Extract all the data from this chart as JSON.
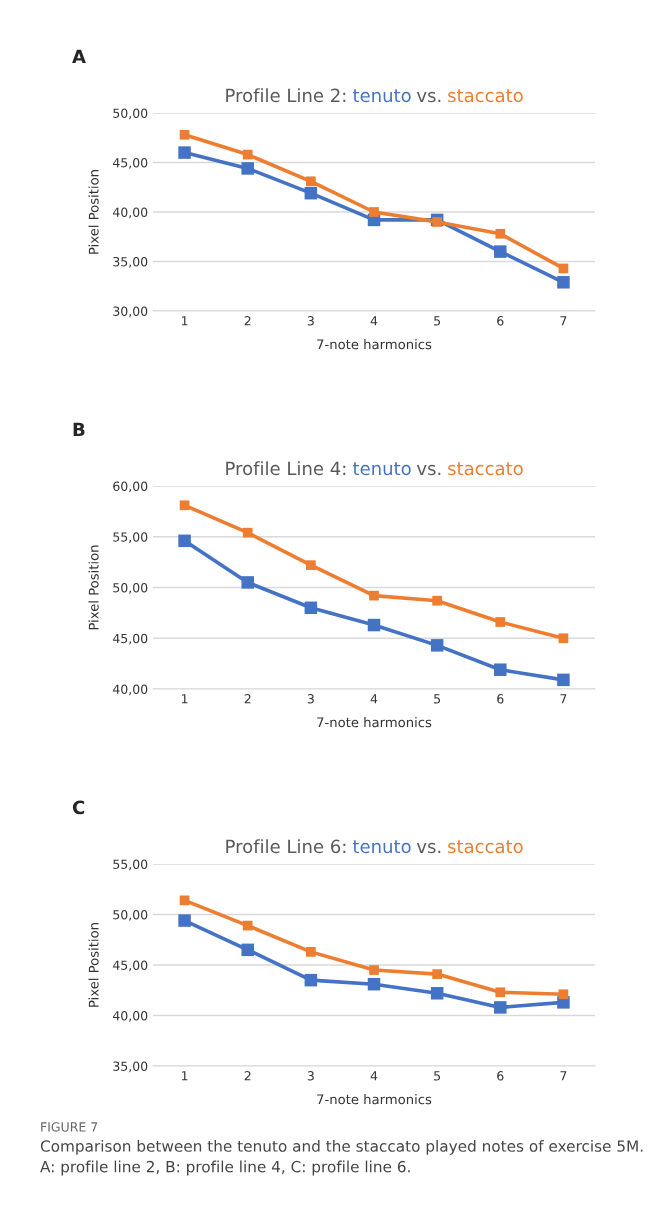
{
  "chart_data": [
    {
      "type": "line",
      "title": "Profile Line 2:",
      "xlabel": "7-note harmonics",
      "ylabel": "Pixel Position",
      "categories": [
        "1",
        "2",
        "3",
        "4",
        "5",
        "6",
        "7"
      ],
      "ylim": [
        30,
        50
      ],
      "yticks": [
        {
          "value": 30,
          "label": "30,00"
        },
        {
          "value": 35,
          "label": "35,00"
        },
        {
          "value": 40,
          "label": "40,00"
        },
        {
          "value": 45,
          "label": "45,00"
        },
        {
          "value": 50,
          "label": "50,00"
        }
      ],
      "grid": "y",
      "marker": "square",
      "line_style": "solid",
      "legend": false,
      "annotations": [
        "A",
        "vs."
      ],
      "series": [
        {
          "name": "tenuto",
          "color": "#4472c4",
          "values": [
            46.0,
            44.4,
            41.9,
            39.2,
            39.2,
            36.0,
            32.9
          ]
        },
        {
          "name": "staccato",
          "color": "#ed7d31",
          "values": [
            47.8,
            45.8,
            43.1,
            40.0,
            39.0,
            37.8,
            34.3
          ]
        }
      ]
    },
    {
      "type": "line",
      "title": "Profile Line 4:",
      "xlabel": "7-note harmonics",
      "ylabel": "Pixel Position",
      "categories": [
        "1",
        "2",
        "3",
        "4",
        "5",
        "6",
        "7"
      ],
      "ylim": [
        40,
        60
      ],
      "yticks": [
        {
          "value": 40,
          "label": "40,00"
        },
        {
          "value": 45,
          "label": "45,00"
        },
        {
          "value": 50,
          "label": "50,00"
        },
        {
          "value": 55,
          "label": "55,00"
        },
        {
          "value": 60,
          "label": "60,00"
        }
      ],
      "grid": "y",
      "marker": "square",
      "line_style": "solid",
      "legend": false,
      "annotations": [
        "B",
        "vs."
      ],
      "series": [
        {
          "name": "tenuto",
          "color": "#4472c4",
          "values": [
            54.6,
            50.5,
            48.0,
            46.3,
            44.3,
            41.9,
            40.9
          ]
        },
        {
          "name": "staccato",
          "color": "#ed7d31",
          "values": [
            58.1,
            55.4,
            52.2,
            49.2,
            48.7,
            46.6,
            45.0
          ]
        }
      ]
    },
    {
      "type": "line",
      "title": "Profile Line 6:",
      "xlabel": "7-note harmonics",
      "ylabel": "Pixel Position",
      "categories": [
        "1",
        "2",
        "3",
        "4",
        "5",
        "6",
        "7"
      ],
      "ylim": [
        35,
        55
      ],
      "yticks": [
        {
          "value": 35,
          "label": "35,00"
        },
        {
          "value": 40,
          "label": "40,00"
        },
        {
          "value": 45,
          "label": "45,00"
        },
        {
          "value": 50,
          "label": "50,00"
        },
        {
          "value": 55,
          "label": "55,00"
        }
      ],
      "grid": "y",
      "marker": "square",
      "line_style": "solid",
      "legend": false,
      "annotations": [
        "C",
        "vs.",
        "FIGURE 7",
        "Comparison between the tenuto and the staccato played notes of exercise 5M. A: profile line 2, B: profile line 4, C: profile line 6."
      ],
      "series": [
        {
          "name": "tenuto",
          "color": "#4472c4",
          "values": [
            49.4,
            46.5,
            43.5,
            43.1,
            42.2,
            40.8,
            41.3
          ]
        },
        {
          "name": "staccato",
          "color": "#ed7d31",
          "values": [
            51.4,
            48.9,
            46.3,
            44.5,
            44.1,
            42.3,
            42.1
          ]
        }
      ]
    }
  ]
}
